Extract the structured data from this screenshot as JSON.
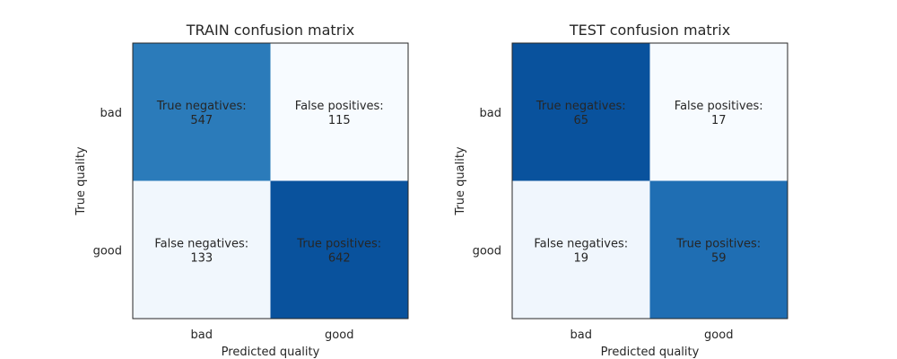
{
  "chart_data": [
    {
      "type": "heatmap",
      "title": "TRAIN confusion matrix",
      "xlabel": "Predicted quality",
      "ylabel": "True quality",
      "x_categories": [
        "bad",
        "good"
      ],
      "y_categories": [
        "bad",
        "good"
      ],
      "colormap": "Blues",
      "values": [
        [
          547,
          115
        ],
        [
          133,
          642
        ]
      ],
      "cell_labels": [
        [
          "True negatives:",
          "False positives:"
        ],
        [
          "False negatives:",
          "True positives:"
        ]
      ],
      "grid": false
    },
    {
      "type": "heatmap",
      "title": "TEST confusion matrix",
      "xlabel": "Predicted quality",
      "ylabel": "True quality",
      "x_categories": [
        "bad",
        "good"
      ],
      "y_categories": [
        "bad",
        "good"
      ],
      "colormap": "Blues",
      "values": [
        [
          65,
          17
        ],
        [
          19,
          59
        ]
      ],
      "cell_labels": [
        [
          "True negatives:",
          "False positives:"
        ],
        [
          "False negatives:",
          "True positives:"
        ]
      ],
      "grid": false
    }
  ]
}
